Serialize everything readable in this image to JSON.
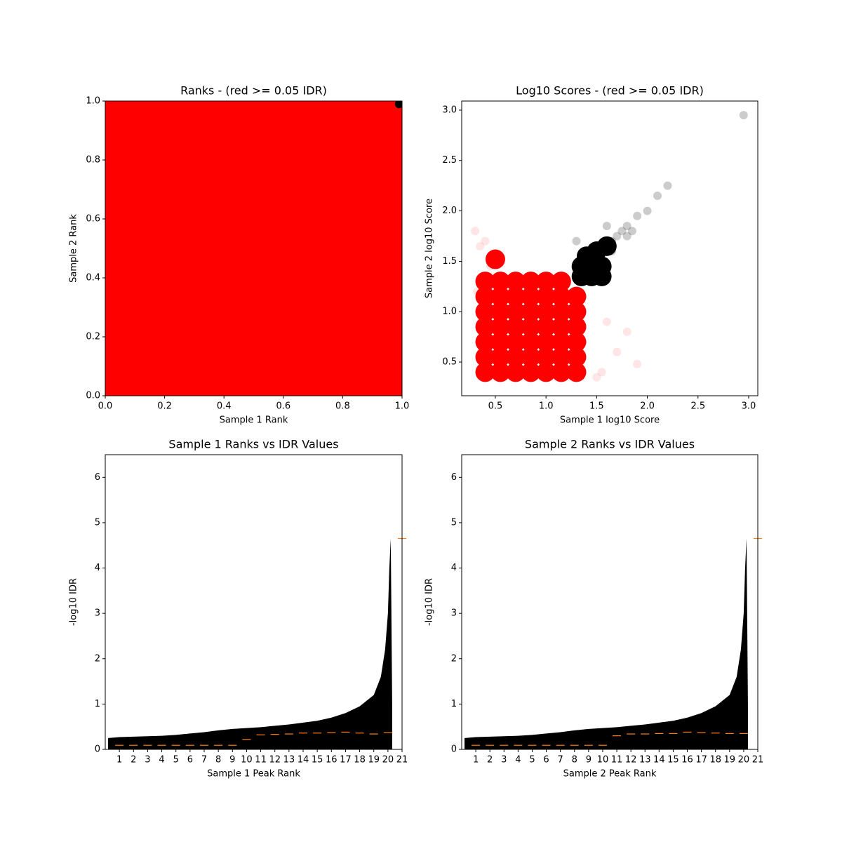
{
  "chart_data": [
    {
      "type": "scatter",
      "title": "Ranks - (red >= 0.05 IDR)",
      "xlabel": "Sample 1 Rank",
      "ylabel": "Sample 2 Rank",
      "xlim": [
        0,
        1
      ],
      "ylim": [
        0,
        1
      ],
      "xticks": [
        {
          "value": 0,
          "label": "0.0"
        },
        0.2,
        0.4,
        0.6,
        0.8,
        {
          "value": 1,
          "label": "1.0"
        }
      ],
      "yticks": [
        {
          "value": 0,
          "label": "0.0"
        },
        0.2,
        0.4,
        0.6,
        0.8,
        {
          "value": 1,
          "label": "1.0"
        }
      ],
      "series": [
        {
          "color": "#ff0000",
          "alpha": 1,
          "marker": "square",
          "marker_size": 86,
          "x": [
            0.1,
            0.3,
            0.5,
            0.7,
            0.9,
            0.1,
            0.3,
            0.5,
            0.7,
            0.9,
            0.1,
            0.3,
            0.5,
            0.7,
            0.9,
            0.1,
            0.3,
            0.5,
            0.7,
            0.9,
            0.1,
            0.3,
            0.5,
            0.7,
            0.9
          ],
          "y": [
            0.1,
            0.1,
            0.1,
            0.1,
            0.1,
            0.3,
            0.3,
            0.3,
            0.3,
            0.3,
            0.5,
            0.5,
            0.5,
            0.5,
            0.5,
            0.7,
            0.7,
            0.7,
            0.7,
            0.7,
            0.9,
            0.9,
            0.9,
            0.9,
            0.9
          ]
        },
        {
          "color": "#000000",
          "alpha": 1,
          "marker": "circle",
          "marker_size": 6,
          "x": [
            0.99
          ],
          "y": [
            0.99
          ]
        }
      ]
    },
    {
      "type": "scatter",
      "title": "Log10 Scores - (red >= 0.05 IDR)",
      "xlabel": "Sample 1 log10 Score",
      "ylabel": "Sample 2 log10 Score",
      "xlim": [
        0.168,
        3.09
      ],
      "ylim": [
        0.166,
        3.09
      ],
      "xticks": [
        0.5,
        {
          "value": 1,
          "label": "1.0"
        },
        1.5,
        {
          "value": 2,
          "label": "2.0"
        },
        2.5,
        {
          "value": 3,
          "label": "3.0"
        }
      ],
      "yticks": [
        0.5,
        {
          "value": 1,
          "label": "1.0"
        },
        1.5,
        {
          "value": 2,
          "label": "2.0"
        },
        2.5,
        {
          "value": 3,
          "label": "3.0"
        }
      ],
      "series": [
        {
          "color": "#ff0000",
          "alpha": 0.1,
          "marker": "circle",
          "marker_size": 6,
          "x": [
            0.3,
            0.35,
            0.5,
            1.8,
            1.9,
            1.55,
            0.4,
            1.7,
            1.5,
            0.32,
            0.45,
            1.6
          ],
          "y": [
            1.8,
            1.65,
            1.55,
            0.8,
            0.48,
            0.4,
            1.7,
            0.6,
            0.35,
            1.2,
            1.45,
            0.9
          ]
        },
        {
          "color": "#ff0000",
          "alpha": 1,
          "marker": "circle",
          "marker_size": 14,
          "x": [
            0.4,
            0.55,
            0.7,
            0.85,
            1.0,
            1.15,
            1.3,
            0.4,
            0.55,
            0.7,
            0.85,
            1.0,
            1.15,
            1.3,
            0.4,
            0.55,
            0.7,
            0.85,
            1.0,
            1.15,
            1.3,
            0.4,
            0.55,
            0.7,
            0.85,
            1.0,
            1.15,
            1.3,
            0.4,
            0.55,
            0.7,
            0.85,
            1.0,
            1.15,
            1.3,
            0.4,
            0.55,
            0.7,
            0.85,
            1.0,
            1.15,
            1.3,
            0.4,
            0.55,
            0.7,
            0.85,
            1.0,
            1.15,
            0.5
          ],
          "y": [
            0.4,
            0.4,
            0.4,
            0.4,
            0.4,
            0.4,
            0.4,
            0.55,
            0.55,
            0.55,
            0.55,
            0.55,
            0.55,
            0.55,
            0.7,
            0.7,
            0.7,
            0.7,
            0.7,
            0.7,
            0.7,
            0.85,
            0.85,
            0.85,
            0.85,
            0.85,
            0.85,
            0.85,
            1.0,
            1.0,
            1.0,
            1.0,
            1.0,
            1.0,
            1.0,
            1.15,
            1.15,
            1.15,
            1.15,
            1.15,
            1.15,
            1.15,
            1.3,
            1.3,
            1.3,
            1.3,
            1.3,
            1.3,
            1.52
          ]
        },
        {
          "color": "#000000",
          "alpha": 1,
          "marker": "circle",
          "marker_size": 14,
          "x": [
            1.35,
            1.45,
            1.55,
            1.35,
            1.45,
            1.55,
            1.4,
            1.5,
            1.6
          ],
          "y": [
            1.35,
            1.35,
            1.35,
            1.45,
            1.45,
            1.45,
            1.55,
            1.6,
            1.65
          ]
        },
        {
          "color": "#000000",
          "alpha": 0.2,
          "marker": "circle",
          "marker_size": 6,
          "x": [
            1.65,
            1.7,
            1.75,
            1.8,
            1.85,
            1.9,
            2.0,
            2.1,
            2.2,
            1.6,
            1.8,
            2.95,
            1.3,
            1.65
          ],
          "y": [
            1.7,
            1.75,
            1.8,
            1.85,
            1.8,
            1.95,
            2.0,
            2.15,
            2.25,
            1.85,
            1.75,
            2.95,
            1.7,
            1.6
          ]
        }
      ]
    },
    {
      "type": "idr",
      "title": "Sample 1 Ranks vs IDR Values",
      "xlabel": "Sample 1 Peak Rank",
      "ylabel": "-log10 IDR",
      "xlim": [
        0,
        21
      ],
      "ylim": [
        0,
        6.5
      ],
      "xticks": [
        1,
        2,
        3,
        4,
        5,
        6,
        7,
        8,
        9,
        10,
        11,
        12,
        13,
        14,
        15,
        16,
        17,
        18,
        19,
        20,
        21
      ],
      "yticks": [
        0,
        1,
        2,
        3,
        4,
        5,
        6
      ],
      "area_color": "#000000",
      "median_color": "#ff7f0e",
      "area_x": [
        0.2,
        1,
        2,
        3,
        4,
        5,
        6,
        7,
        8,
        9,
        10,
        11,
        12,
        13,
        14,
        15,
        16,
        17,
        18,
        19,
        19.5,
        19.8,
        20,
        20.1,
        20.2,
        20.3
      ],
      "area_y": [
        0.25,
        0.27,
        0.28,
        0.29,
        0.3,
        0.32,
        0.35,
        0.38,
        0.42,
        0.45,
        0.47,
        0.49,
        0.52,
        0.55,
        0.59,
        0.63,
        0.7,
        0.8,
        0.95,
        1.2,
        1.6,
        2.2,
        3.0,
        4.0,
        4.65,
        1.0
      ],
      "median_x": [
        1,
        2,
        3,
        4,
        5,
        6,
        7,
        8,
        9,
        10,
        11,
        12,
        13,
        14,
        15,
        16,
        17,
        18,
        19,
        20,
        21
      ],
      "median_y": [
        0.09,
        0.09,
        0.09,
        0.09,
        0.09,
        0.09,
        0.09,
        0.09,
        0.09,
        0.22,
        0.32,
        0.33,
        0.34,
        0.36,
        0.36,
        0.37,
        0.38,
        0.36,
        0.34,
        0.37,
        4.65
      ]
    },
    {
      "type": "idr",
      "title": "Sample 2 Ranks vs IDR Values",
      "xlabel": "Sample 2 Peak Rank",
      "ylabel": "-log10 IDR",
      "xlim": [
        0,
        21
      ],
      "ylim": [
        0,
        6.5
      ],
      "xticks": [
        1,
        2,
        3,
        4,
        5,
        6,
        7,
        8,
        9,
        10,
        11,
        12,
        13,
        14,
        15,
        16,
        17,
        18,
        19,
        20,
        21
      ],
      "yticks": [
        0,
        1,
        2,
        3,
        4,
        5,
        6
      ],
      "area_color": "#000000",
      "median_color": "#ff7f0e",
      "area_x": [
        0.2,
        1,
        2,
        3,
        4,
        5,
        6,
        7,
        8,
        9,
        10,
        11,
        12,
        13,
        14,
        15,
        16,
        17,
        18,
        19,
        19.5,
        19.8,
        20,
        20.1,
        20.2,
        20.3
      ],
      "area_y": [
        0.25,
        0.27,
        0.28,
        0.29,
        0.3,
        0.32,
        0.35,
        0.38,
        0.42,
        0.45,
        0.47,
        0.49,
        0.52,
        0.55,
        0.59,
        0.63,
        0.7,
        0.8,
        0.95,
        1.2,
        1.6,
        2.2,
        3.0,
        4.0,
        4.65,
        1.0
      ],
      "median_x": [
        1,
        2,
        3,
        4,
        5,
        6,
        7,
        8,
        9,
        10,
        11,
        12,
        13,
        14,
        15,
        16,
        17,
        18,
        19,
        20,
        21
      ],
      "median_y": [
        0.09,
        0.09,
        0.09,
        0.09,
        0.09,
        0.09,
        0.09,
        0.09,
        0.09,
        0.09,
        0.3,
        0.34,
        0.34,
        0.35,
        0.35,
        0.38,
        0.37,
        0.36,
        0.35,
        0.35,
        4.65
      ]
    }
  ]
}
